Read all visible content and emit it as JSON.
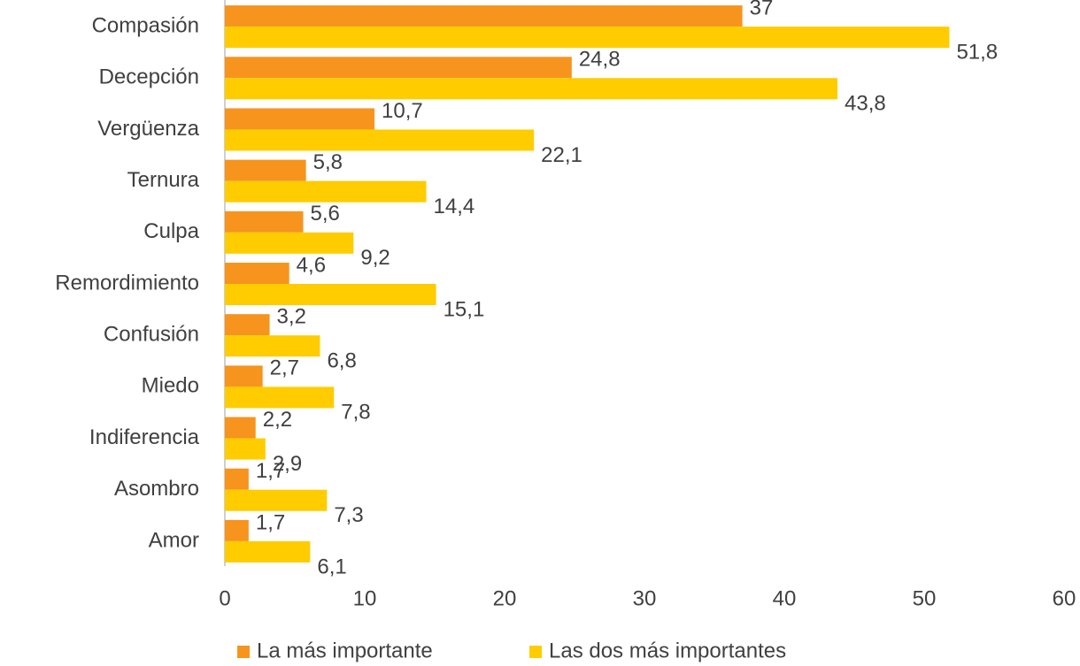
{
  "chart_data": {
    "type": "barh",
    "categories": [
      "Compasión",
      "Decepción",
      "Vergüenza",
      "Ternura",
      "Culpa",
      "Remordimiento",
      "Confusión",
      "Miedo",
      "Indiferencia",
      "Asombro",
      "Amor"
    ],
    "series": [
      {
        "name": "La más importante",
        "color": "#f7941d",
        "values": [
          37,
          24.8,
          10.7,
          5.8,
          5.6,
          4.6,
          3.2,
          2.7,
          2.2,
          1.7,
          1.7
        ],
        "value_labels": [
          "37",
          "24,8",
          "10,7",
          "5,8",
          "5,6",
          "4,6",
          "3,2",
          "2,7",
          "2,2",
          "1,7",
          "1,7"
        ]
      },
      {
        "name": "Las dos más importantes",
        "color": "#ffcc00",
        "values": [
          51.8,
          43.8,
          22.1,
          14.4,
          9.2,
          15.1,
          6.8,
          7.8,
          2.9,
          7.3,
          6.1
        ],
        "value_labels": [
          "51,8",
          "43,8",
          "22,1",
          "14,4",
          "9,2",
          "15,1",
          "6,8",
          "7,8",
          "2,9",
          "7,3",
          "6,1"
        ]
      }
    ],
    "xlim": [
      0,
      60
    ],
    "xticks": [
      0,
      10,
      20,
      30,
      40,
      50,
      60
    ],
    "legend": "bottom"
  }
}
